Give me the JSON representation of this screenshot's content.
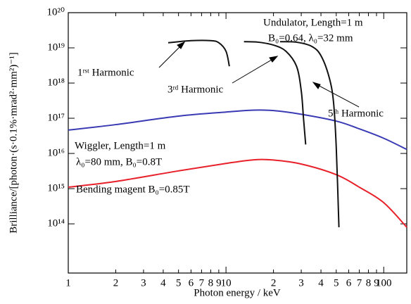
{
  "chart_data": {
    "type": "line",
    "xlabel": "Photon energy / keV",
    "ylabel": "Brilliance/[photon·(s·0.1%·mrad²·mm²)⁻¹]",
    "xscale": "log",
    "yscale": "log",
    "xlim": [
      1,
      140
    ],
    "ylim": [
      4000000000000.0,
      1e+20
    ],
    "xticks": [
      1,
      {
        "value": 2,
        "label": "2"
      },
      {
        "value": 3,
        "label": "3"
      },
      {
        "value": 4,
        "label": "4"
      },
      {
        "value": 5,
        "label": "5"
      },
      {
        "value": 6,
        "label": "6"
      },
      {
        "value": 7,
        "label": "7"
      },
      {
        "value": 8,
        "label": "8"
      },
      {
        "value": 9,
        "label": "9"
      },
      10,
      {
        "value": 20,
        "label": "2"
      },
      {
        "value": 30,
        "label": "3"
      },
      {
        "value": 40,
        "label": "4"
      },
      {
        "value": 50,
        "label": "5"
      },
      {
        "value": 60,
        "label": "6"
      },
      {
        "value": 70,
        "label": "7"
      },
      {
        "value": 80,
        "label": "8"
      },
      {
        "value": 90,
        "label": "9"
      },
      100
    ],
    "yticks": [
      {
        "value": 100000000000000.0,
        "label": "10¹⁴"
      },
      {
        "value": 1000000000000000.0,
        "label": "10¹⁵"
      },
      {
        "value": 1e+16,
        "label": "10¹⁶"
      },
      {
        "value": 1e+17,
        "label": "10¹⁷"
      },
      {
        "value": 1e+18,
        "label": "10¹⁸"
      },
      {
        "value": 1e+19,
        "label": "10¹⁹"
      },
      {
        "value": 1e+20,
        "label": "10²⁰"
      }
    ],
    "series": [
      {
        "color": "#3a3ab4",
        "x": [
          1,
          2,
          5,
          10,
          15,
          20,
          30,
          50,
          70,
          100,
          140
        ],
        "y": [
          4.6e+16,
          6.6e+16,
          1.15e+17,
          1.5e+17,
          1.7e+17,
          1.65e+17,
          1.3e+17,
          8.3e+16,
          5e+16,
          2.7e+16,
          1.3e+16
        ]
      },
      {
        "color": "#e8202a",
        "x": [
          1,
          2,
          5,
          10,
          15,
          20,
          30,
          50,
          70,
          100,
          140
        ],
        "y": [
          1100000000000000.0,
          1600000000000000.0,
          3200000000000000.0,
          5200000000000000.0,
          6600000000000000.0,
          6500000000000000.0,
          5000000000000000.0,
          2500000000000000.0,
          1100000000000000.0,
          400000000000000.0,
          80000000000000.0
        ]
      },
      {
        "color": "#111111",
        "x": [
          4.3,
          6,
          8,
          9,
          10,
          10.5
        ],
        "y": [
          1.4e+19,
          1.6e+19,
          1.6e+19,
          1.4e+19,
          8e+18,
          3e+18
        ]
      },
      {
        "color": "#111111",
        "x": [
          13,
          16,
          20,
          24,
          28,
          30,
          31,
          32
        ],
        "y": [
          1.5e+19,
          1.45e+19,
          1.2e+19,
          8e+18,
          3e+18,
          6e+17,
          1e+17,
          1.8e+16
        ]
      },
      {
        "color": "#111111",
        "x": [
          22,
          28,
          35,
          40,
          45,
          48,
          50,
          52
        ],
        "y": [
          1.5e+19,
          1.45e+19,
          1.1e+19,
          6e+18,
          1.5e+18,
          3e+17,
          1.5e+16,
          80000000000000.0
        ]
      }
    ],
    "annotations": [
      "Undulator, Length=1 m",
      "B₀=0.64, λ₀=32 mm",
      "1ʳˢᵗ Harmonic",
      "3ʳᵈ Harmonic",
      "5ᵗʰ Harmonic",
      "Wiggler, Length=1 m",
      "λ₀=80 mm, B₀=0.8T",
      "Bending magent B₀=0.85T"
    ]
  }
}
